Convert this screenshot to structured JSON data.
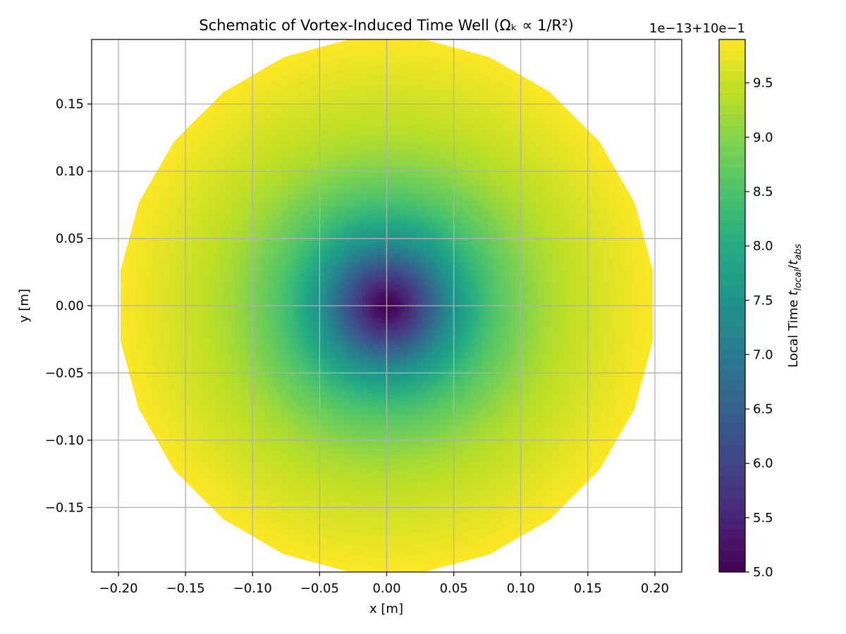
{
  "chart_data": {
    "type": "heatmap",
    "title": "Schematic of Vortex-Induced Time Well (Ωₖ ∝ 1/R²)",
    "xlabel": "x [m]",
    "ylabel": "y [m]",
    "xlim": [
      -0.22,
      0.22
    ],
    "ylim": [
      -0.198,
      0.198
    ],
    "x_ticks": [
      "−0.20",
      "−0.15",
      "−0.10",
      "−0.05",
      "0.00",
      "0.05",
      "0.10",
      "0.15",
      "0.20"
    ],
    "x_tick_values": [
      -0.2,
      -0.15,
      -0.1,
      -0.05,
      0.0,
      0.05,
      0.1,
      0.15,
      0.2
    ],
    "y_ticks": [
      "−0.15",
      "−0.10",
      "−0.05",
      "0.00",
      "0.05",
      "0.10",
      "0.15"
    ],
    "y_tick_values": [
      -0.15,
      -0.1,
      -0.05,
      0.0,
      0.05,
      0.1,
      0.15
    ],
    "grid": true,
    "field": {
      "center": [
        0.0,
        0.0
      ],
      "domain_radius": 0.2,
      "value_min": 5.0,
      "value_max": 9.9,
      "description_scale": "1e−13+10e−1"
    },
    "contour_bands": [
      {
        "r": 0.2,
        "v": 9.9
      },
      {
        "r": 0.18,
        "v": 9.75
      },
      {
        "r": 0.16,
        "v": 9.6
      },
      {
        "r": 0.14,
        "v": 9.45
      },
      {
        "r": 0.12,
        "v": 9.25
      },
      {
        "r": 0.105,
        "v": 9.0
      },
      {
        "r": 0.092,
        "v": 8.75
      },
      {
        "r": 0.08,
        "v": 8.5
      },
      {
        "r": 0.07,
        "v": 8.2
      },
      {
        "r": 0.06,
        "v": 7.85
      },
      {
        "r": 0.05,
        "v": 7.45
      },
      {
        "r": 0.042,
        "v": 7.0
      },
      {
        "r": 0.034,
        "v": 6.5
      },
      {
        "r": 0.026,
        "v": 6.0
      },
      {
        "r": 0.018,
        "v": 5.6
      },
      {
        "r": 0.01,
        "v": 5.2
      },
      {
        "r": 0.004,
        "v": 5.0
      }
    ],
    "colorbar": {
      "label_main": "Local Time ",
      "label_t": "t",
      "label_sub1": "local",
      "label_slash": "/",
      "label_sub2": "abs",
      "offset_text": "1e−13+10e−1",
      "ticks": [
        "5.0",
        "5.5",
        "6.0",
        "6.5",
        "7.0",
        "7.5",
        "8.0",
        "8.5",
        "9.0",
        "9.5"
      ],
      "tick_values": [
        5.0,
        5.5,
        6.0,
        6.5,
        7.0,
        7.5,
        8.0,
        8.5,
        9.0,
        9.5
      ],
      "range": [
        5.0,
        9.9
      ],
      "colormap": "viridis",
      "levels": 50
    }
  }
}
